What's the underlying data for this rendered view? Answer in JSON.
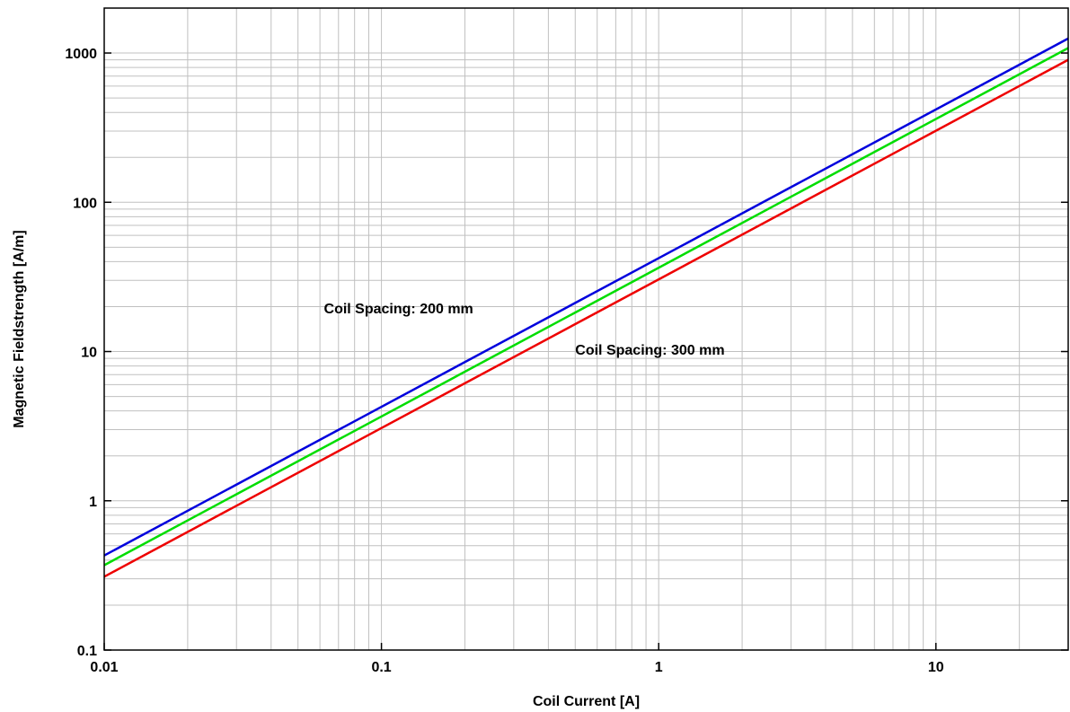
{
  "chart_data": {
    "type": "line",
    "xlabel": "Coil Current [A]",
    "ylabel": "Magnetic Fieldstrength [A/m]",
    "x_scale": "log",
    "y_scale": "log",
    "xlim": [
      0.01,
      30
    ],
    "ylim": [
      0.1,
      2000
    ],
    "grid": true,
    "x_ticks": [
      {
        "value": 0.01,
        "label": "0.01"
      },
      {
        "value": 0.1,
        "label": "0.1"
      },
      {
        "value": 1,
        "label": "1"
      },
      {
        "value": 10,
        "label": "10"
      }
    ],
    "y_ticks": [
      {
        "value": 0.1,
        "label": "0.1"
      },
      {
        "value": 1,
        "label": "1"
      },
      {
        "value": 10,
        "label": "10"
      },
      {
        "value": 100,
        "label": "100"
      },
      {
        "value": 1000,
        "label": "1000"
      }
    ],
    "series": [
      {
        "color": "#0000dd",
        "x": [
          0.01,
          30
        ],
        "y": [
          0.43,
          1250
        ]
      },
      {
        "color": "#00dd00",
        "x": [
          0.01,
          30
        ],
        "y": [
          0.37,
          1080
        ]
      },
      {
        "color": "#ee0000",
        "x": [
          0.01,
          30
        ],
        "y": [
          0.31,
          900
        ]
      }
    ],
    "annotations": [
      {
        "text": "Coil Spacing: 200 mm",
        "x": 0.062,
        "y": 18
      },
      {
        "text": "Coil Spacing: 300 mm",
        "x": 0.5,
        "y": 9.5
      }
    ]
  }
}
